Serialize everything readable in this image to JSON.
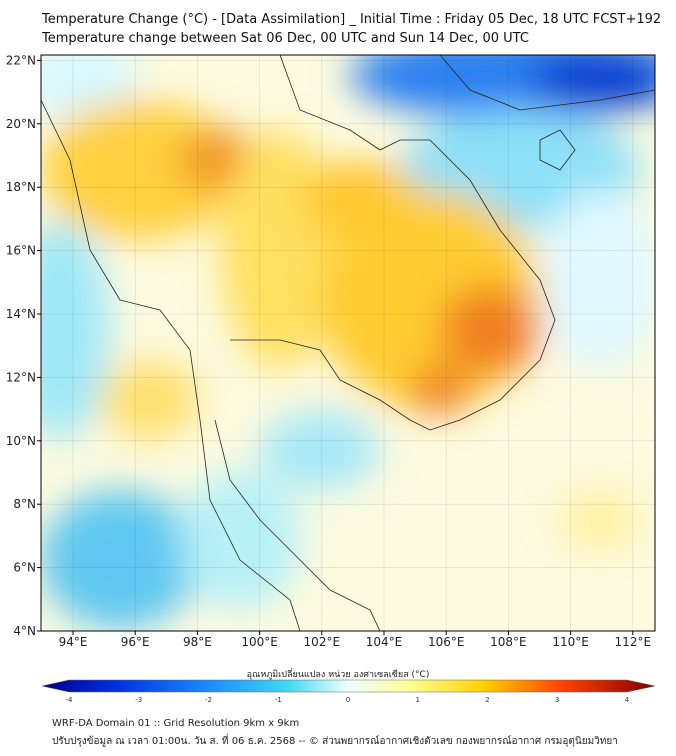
{
  "title_line1": "Temperature Change (°C) - [Data Assimilation] _ Initial Time : Friday 05 Dec, 18 UTC FCST+192",
  "title_line2": "Temperature change between Sat 06 Dec, 00 UTC and Sun 14 Dec, 00 UTC",
  "map": {
    "lon_labels": [
      "94°E",
      "96°E",
      "98°E",
      "100°E",
      "102°E",
      "104°E",
      "106°E",
      "108°E",
      "110°E",
      "112°E"
    ],
    "lat_labels": [
      "22°N",
      "20°N",
      "18°N",
      "16°N",
      "14°N",
      "12°N",
      "10°N",
      "8°N",
      "6°N",
      "4°N"
    ],
    "lon_range": [
      93,
      112.7
    ],
    "lat_range": [
      4,
      22.3
    ]
  },
  "colorbar": {
    "label": "อุณหภูมิเปลี่ยนแปลง หน่วย องศาเซลเซียส (°C)",
    "ticks": [
      "-4",
      "-3",
      "-2",
      "-1",
      "0",
      "1",
      "2",
      "3",
      "4"
    ],
    "range": [
      -4,
      4
    ],
    "colors": [
      "#00008b",
      "#0030e0",
      "#1e90ff",
      "#40d0f0",
      "#e8ffff",
      "#ffffa0",
      "#ffd000",
      "#ff8000",
      "#ff0000",
      "#800000"
    ]
  },
  "footer": {
    "line1": "WRF-DA Domain 01 :: Grid Resolution 9km x 9km",
    "line2": "ปรับปรุงข้อมูล ณ เวลา 01:00น. วัน ส. ที่ 06 ธ.ค. 2568 -- © ส่วนพยากรณ์อากาศเชิงตัวเลข กองพยากรณ์อากาศ กรมอุตุนิยมวิทยา"
  }
}
